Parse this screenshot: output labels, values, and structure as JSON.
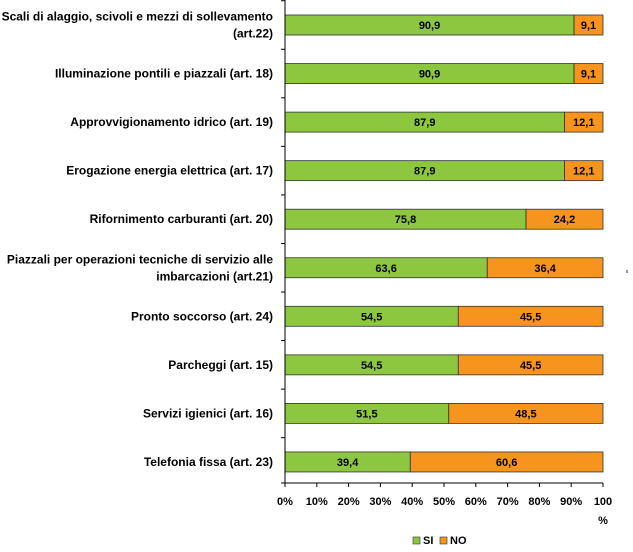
{
  "chart_data": {
    "type": "bar",
    "orientation": "horizontal",
    "stacked": true,
    "categories": [
      [
        "Scali di alaggio, scivoli e mezzi di sollevamento",
        "(art.22)"
      ],
      [
        "Illuminazione pontili e piazzali (art. 18)"
      ],
      [
        "Approvvigionamento idrico (art. 19)"
      ],
      [
        "Erogazione energia elettrica (art. 17)"
      ],
      [
        "Rifornimento carburanti (art. 20)"
      ],
      [
        "Piazzali per operazioni tecniche di servizio alle",
        "imbarcazioni (art.21)"
      ],
      [
        "Pronto soccorso (art. 24)"
      ],
      [
        "Parcheggi  (art. 15)"
      ],
      [
        "Servizi igienici (art. 16)"
      ],
      [
        "Telefonia fissa (art. 23)"
      ]
    ],
    "series": [
      {
        "name": "SI",
        "color": "#8dc63f",
        "values": [
          90.9,
          90.9,
          87.9,
          87.9,
          75.8,
          63.6,
          54.5,
          54.5,
          51.5,
          39.4
        ],
        "labels": [
          "90,9",
          "90,9",
          "87,9",
          "87,9",
          "75,8",
          "63,6",
          "54,5",
          "54,5",
          "51,5",
          "39,4"
        ]
      },
      {
        "name": "NO",
        "color": "#f7941d",
        "values": [
          9.1,
          9.1,
          12.1,
          12.1,
          24.2,
          36.4,
          45.5,
          45.5,
          48.5,
          60.6
        ],
        "labels": [
          "9,1",
          "9,1",
          "12,1",
          "12,1",
          "24,2",
          "36,4",
          "45,5",
          "45,5",
          "48,5",
          "60,6"
        ]
      }
    ],
    "xlim": [
      0,
      100
    ],
    "xticks": [
      "0%",
      "10%",
      "20%",
      "30%",
      "40%",
      "50%",
      "60%",
      "70%",
      "80%",
      "90%",
      "100"
    ],
    "xunit": "%",
    "legend_position": "bottom",
    "grid": false
  }
}
